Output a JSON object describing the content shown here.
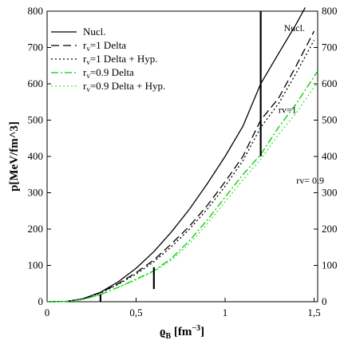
{
  "chart_data": {
    "type": "line",
    "title": "",
    "xlabel": "ϱB [fm⁻³]",
    "xlabel_main": "ϱ",
    "xlabel_sub": "B",
    "xlabel_rest": " [fm",
    "xlabel_sup": "−3",
    "xlabel_end": "]",
    "ylabel": "p[MeV/fm^3]",
    "xlim": [
      0,
      1.52
    ],
    "ylim": [
      0,
      800
    ],
    "xticks": [
      0,
      0.5,
      1,
      1.5
    ],
    "xtick_labels": [
      "0",
      "0,5",
      "1",
      "1,5"
    ],
    "yticks": [
      0,
      100,
      200,
      300,
      400,
      500,
      600,
      700,
      800
    ],
    "ytick_labels": [
      "0",
      "100",
      "200",
      "300",
      "400",
      "500",
      "600",
      "700",
      "800"
    ],
    "grid": false,
    "legend_position": "top-left",
    "series": [
      {
        "name": "Nucl.",
        "legend": {
          "main": "Nucl.",
          "sub": "",
          "rest": ""
        },
        "color": "#000000",
        "dash": "solid",
        "x": [
          0.0,
          0.1,
          0.2,
          0.3,
          0.4,
          0.5,
          0.6,
          0.7,
          0.8,
          0.9,
          1.0,
          1.1,
          1.2,
          1.3,
          1.4,
          1.45
        ],
        "y": [
          0,
          0.5,
          8,
          26,
          55,
          92,
          138,
          193,
          255,
          325,
          400,
          483,
          600,
          683,
          765,
          810
        ]
      },
      {
        "name": "rv=1 Delta",
        "legend": {
          "main": "r",
          "sub": "v",
          "rest": "=1 Delta"
        },
        "color": "#000000",
        "dash": "long-dash",
        "x": [
          0.0,
          0.1,
          0.2,
          0.3,
          0.4,
          0.5,
          0.6,
          0.7,
          0.8,
          0.9,
          1.0,
          1.1,
          1.2,
          1.3,
          1.4,
          1.5
        ],
        "y": [
          0,
          0.5,
          7,
          25,
          50,
          80,
          115,
          160,
          208,
          265,
          330,
          400,
          500,
          560,
          650,
          745
        ]
      },
      {
        "name": "rv=1 Delta + Hyp.",
        "legend": {
          "main": "r",
          "sub": "v",
          "rest": "=1 Delta + Hyp."
        },
        "color": "#000000",
        "dash": "dot",
        "x": [
          0.0,
          0.1,
          0.2,
          0.3,
          0.4,
          0.5,
          0.6,
          0.7,
          0.8,
          0.9,
          1.0,
          1.1,
          1.2,
          1.3,
          1.4,
          1.5
        ],
        "y": [
          0,
          0.5,
          7,
          24,
          48,
          76,
          110,
          152,
          200,
          255,
          318,
          388,
          480,
          545,
          630,
          720
        ]
      },
      {
        "name": "rv=0.9 Delta",
        "legend": {
          "main": "r",
          "sub": "v",
          "rest": "=0.9 Delta"
        },
        "color": "#00cc00",
        "dash": "dash-dot",
        "x": [
          0.0,
          0.1,
          0.2,
          0.3,
          0.4,
          0.5,
          0.6,
          0.7,
          0.8,
          0.9,
          1.0,
          1.1,
          1.2,
          1.3,
          1.4,
          1.52
        ],
        "y": [
          0,
          0.5,
          6,
          20,
          40,
          62,
          85,
          120,
          168,
          225,
          288,
          350,
          405,
          480,
          545,
          635
        ]
      },
      {
        "name": "rv=0.9 Delta + Hyp.",
        "legend": {
          "main": "r",
          "sub": "v",
          "rest": "=0.9 Delta + Hyp."
        },
        "color": "#33ee33",
        "dash": "dot",
        "x": [
          0.0,
          0.1,
          0.2,
          0.3,
          0.4,
          0.5,
          0.6,
          0.7,
          0.8,
          0.9,
          1.0,
          1.1,
          1.2,
          1.3,
          1.4,
          1.52
        ],
        "y": [
          0,
          0.5,
          6,
          19,
          39,
          60,
          83,
          115,
          160,
          215,
          275,
          335,
          392,
          460,
          520,
          605
        ]
      }
    ],
    "markers": [
      {
        "name": "nucl-marker",
        "x": 1.2,
        "y_range": [
          400,
          800
        ]
      },
      {
        "name": "small-marker-0.3",
        "x": 0.3,
        "y_range": [
          0,
          20
        ]
      },
      {
        "name": "small-marker-0.6",
        "x": 0.6,
        "y_range": [
          35,
          95
        ]
      }
    ],
    "annotations": [
      {
        "name": "annotation-nucl",
        "text": "Nucl.",
        "x": 1.33,
        "y": 745
      },
      {
        "name": "annotation-rv1",
        "text": "rv=1",
        "x": 1.3,
        "y": 520
      },
      {
        "name": "annotation-rv09",
        "text": "rv= 0.9",
        "x": 1.4,
        "y": 325
      }
    ]
  }
}
